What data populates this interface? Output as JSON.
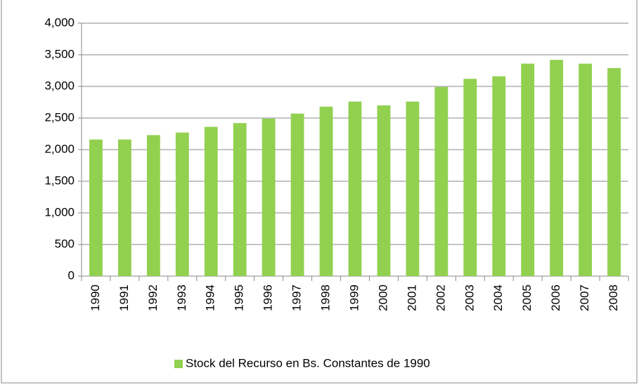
{
  "chart_data": {
    "type": "bar",
    "categories": [
      "1990",
      "1991",
      "1992",
      "1993",
      "1994",
      "1995",
      "1996",
      "1997",
      "1998",
      "1999",
      "2000",
      "2001",
      "2002",
      "2003",
      "2004",
      "2005",
      "2006",
      "2007",
      "2008"
    ],
    "series": [
      {
        "name": "Stock del Recurso en Bs. Constantes de 1990",
        "color": "#92d050",
        "values": [
          2160,
          2160,
          2230,
          2270,
          2360,
          2420,
          2490,
          2570,
          2680,
          2760,
          2700,
          2760,
          2990,
          3120,
          3160,
          3360,
          3420,
          3360,
          3290
        ]
      }
    ],
    "ylim": [
      0,
      4000
    ],
    "yticks": [
      0,
      500,
      {
        "value": 1000,
        "label": "1,000"
      },
      {
        "value": 1500,
        "label": "1,500"
      },
      {
        "value": 2000,
        "label": "2,000"
      },
      {
        "value": 2500,
        "label": "2,500"
      },
      {
        "value": 3000,
        "label": "3,000"
      },
      {
        "value": 3500,
        "label": "3,500"
      },
      {
        "value": 4000,
        "label": "4,000"
      }
    ],
    "grid": true,
    "legend": "bottom"
  }
}
